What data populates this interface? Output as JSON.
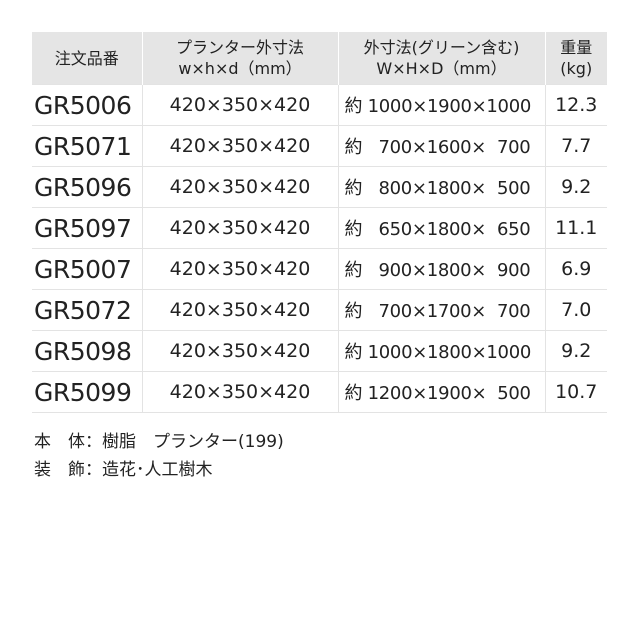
{
  "headers": [
    {
      "line1": "注文品番",
      "line2": ""
    },
    {
      "line1": "プランター外寸法",
      "line2": "w×h×d（mm）"
    },
    {
      "line1": "外寸法(グリーン含む)",
      "line2": "W×H×D（mm）"
    },
    {
      "line1": "重量",
      "line2": "(kg)"
    }
  ],
  "rows": [
    {
      "code": "GR5006",
      "planter": "420×350×420",
      "overall": "約 1000×1900×1000",
      "weight": "12.3"
    },
    {
      "code": "GR5071",
      "planter": "420×350×420",
      "overall": "約   700×1600×  700",
      "weight": "7.7"
    },
    {
      "code": "GR5096",
      "planter": "420×350×420",
      "overall": "約   800×1800×  500",
      "weight": "9.2"
    },
    {
      "code": "GR5097",
      "planter": "420×350×420",
      "overall": "約   650×1800×  650",
      "weight": "11.1"
    },
    {
      "code": "GR5007",
      "planter": "420×350×420",
      "overall": "約   900×1800×  900",
      "weight": "6.9"
    },
    {
      "code": "GR5072",
      "planter": "420×350×420",
      "overall": "約   700×1700×  700",
      "weight": "7.0"
    },
    {
      "code": "GR5098",
      "planter": "420×350×420",
      "overall": "約 1000×1800×1000",
      "weight": "9.2"
    },
    {
      "code": "GR5099",
      "planter": "420×350×420",
      "overall": "約 1200×1900×  500",
      "weight": "10.7"
    }
  ],
  "notes": [
    "本　体：樹脂　プランター(199)",
    "装　飾：造花･人工樹木"
  ],
  "colors": {
    "header_bg": "#e5e5e5",
    "border": "#e3e3e3"
  }
}
